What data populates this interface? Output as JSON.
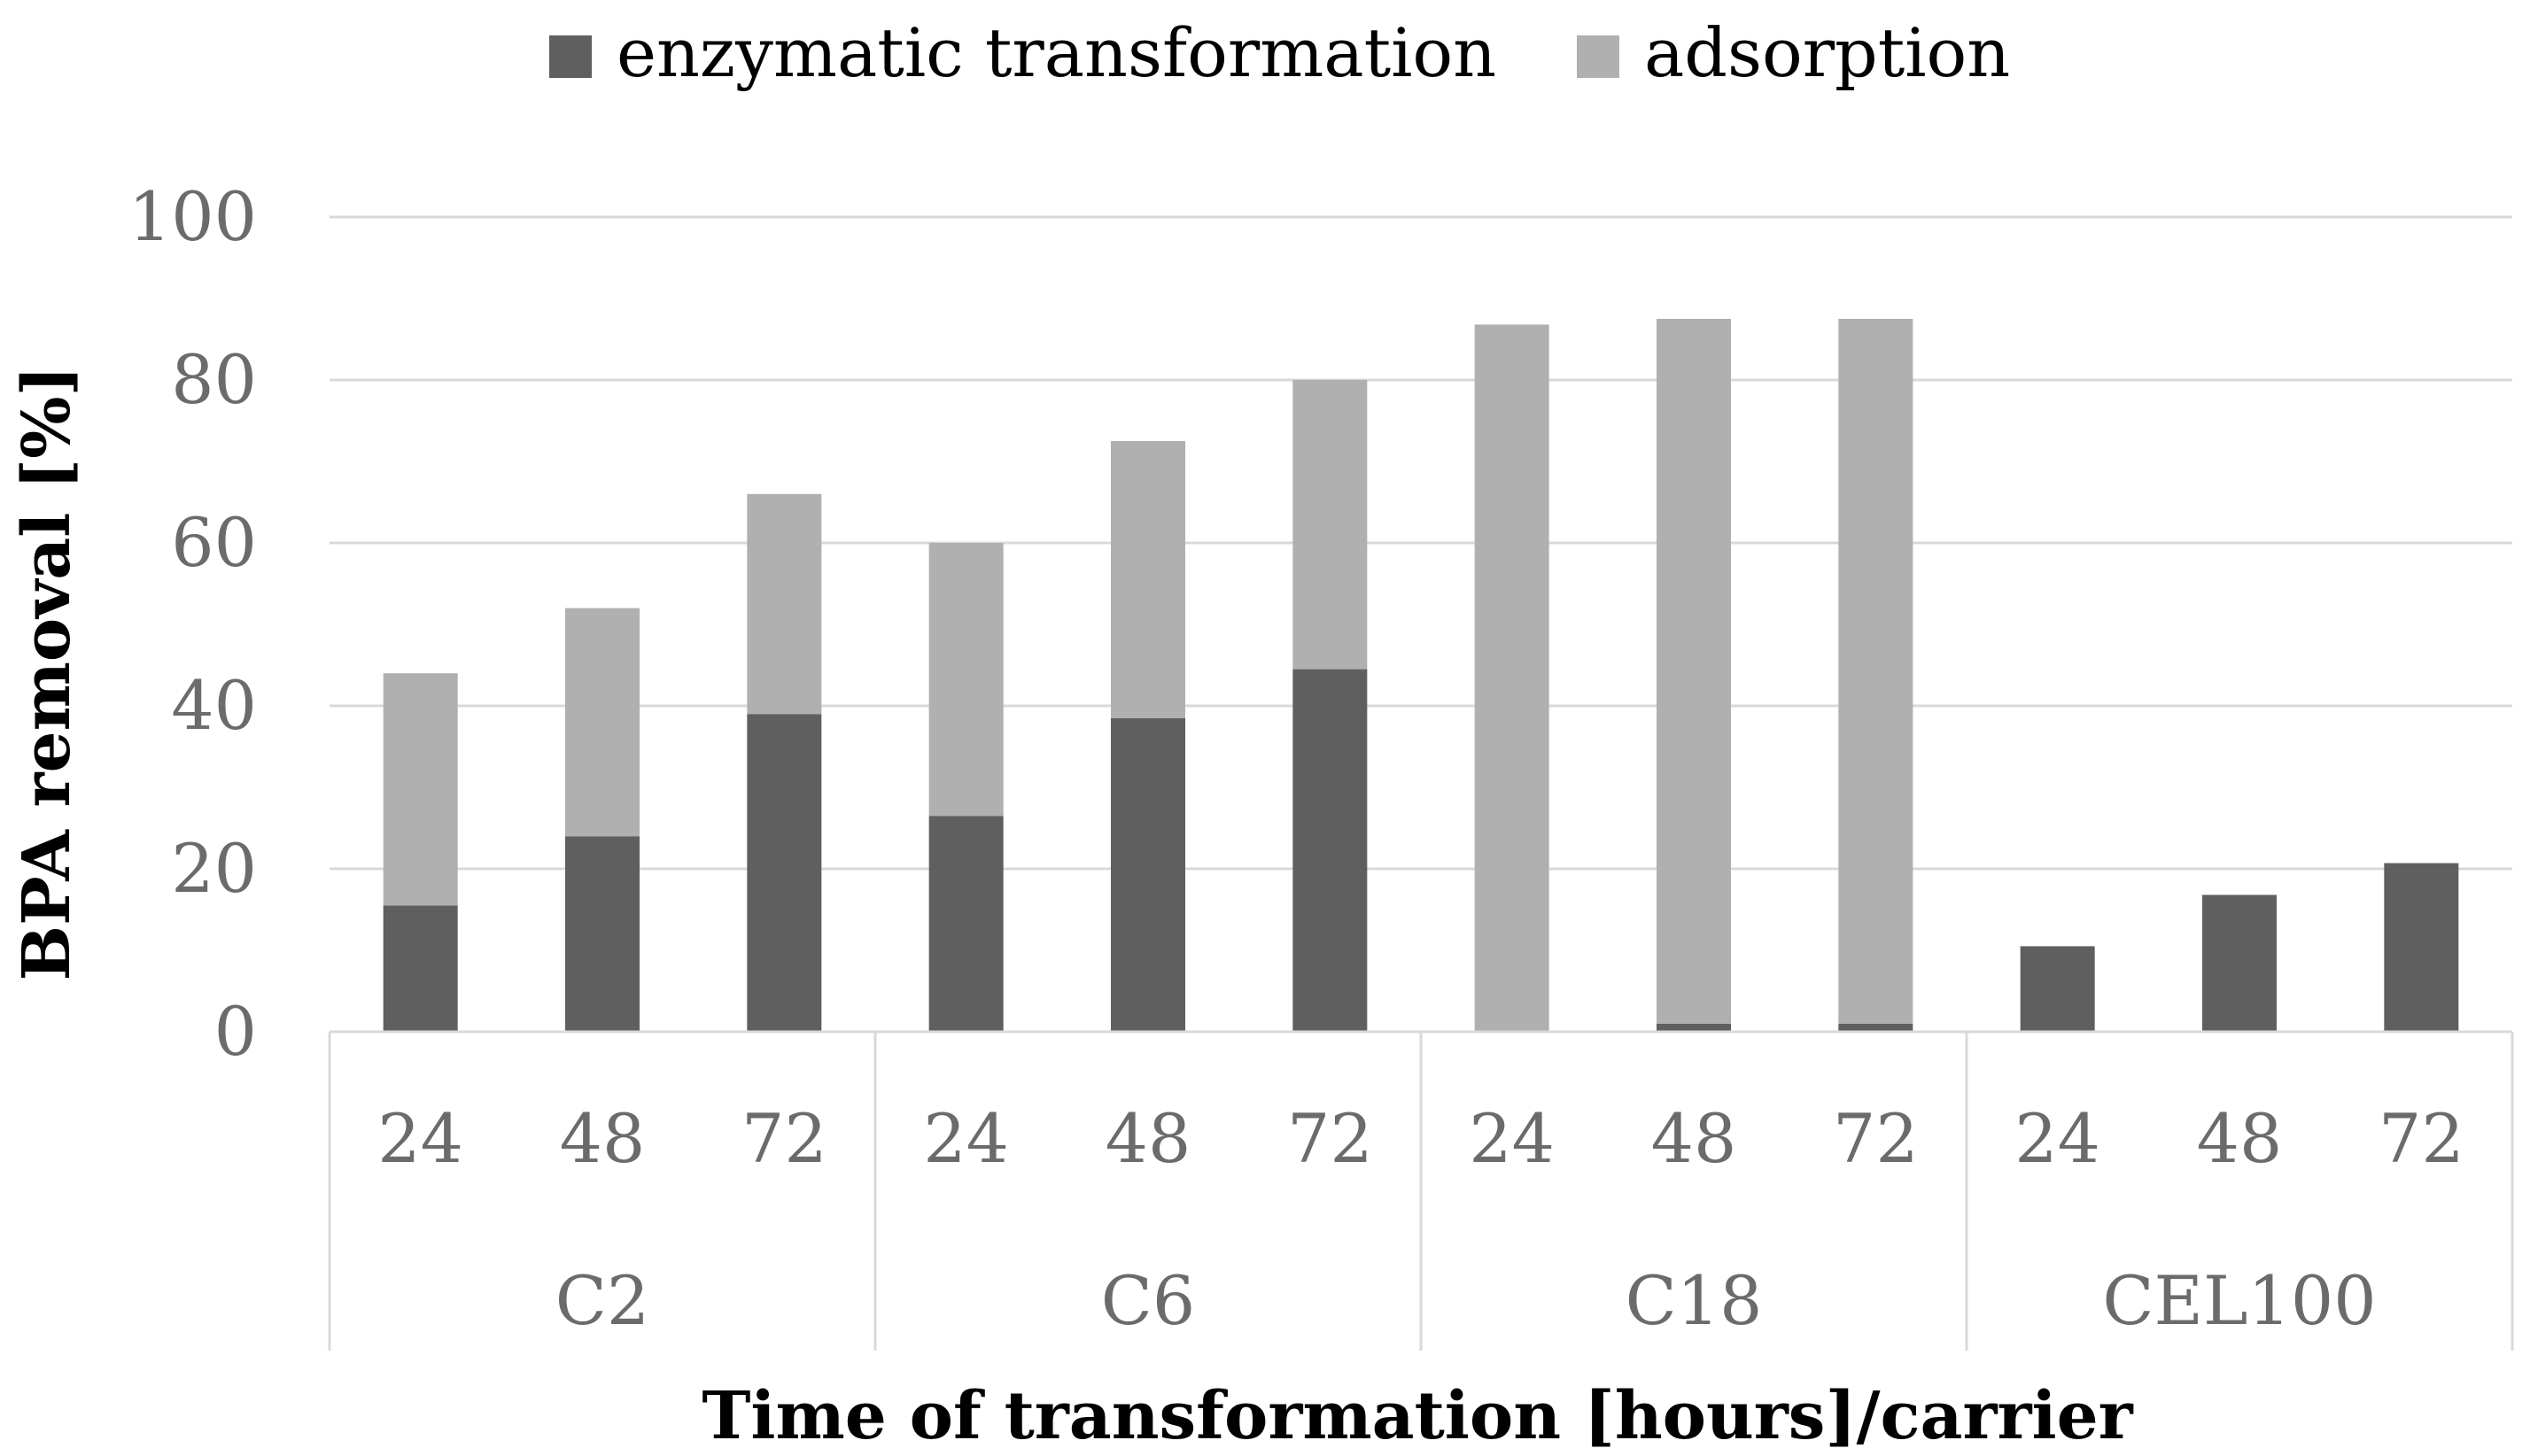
{
  "chart_data": {
    "type": "bar",
    "stacked": true,
    "title": "",
    "xlabel": "Time of transformation [hours]/carrier",
    "ylabel": "BPA removal [%]",
    "ylim": [
      0,
      100
    ],
    "yticks": [
      "0",
      "20",
      "40",
      "60",
      "80",
      "100"
    ],
    "grid": true,
    "legend_position": "top",
    "groups": [
      {
        "label": "C2",
        "categories": [
          "24",
          "48",
          "72"
        ]
      },
      {
        "label": "C6",
        "categories": [
          "24",
          "48",
          "72"
        ]
      },
      {
        "label": "C18",
        "categories": [
          "24",
          "48",
          "72"
        ]
      },
      {
        "label": "CEL100",
        "categories": [
          "24",
          "48",
          "72"
        ]
      }
    ],
    "series": [
      {
        "name": "enzymatic transformation",
        "color": "#5f5f5f",
        "values": [
          15.5,
          24,
          39,
          26.5,
          38.5,
          44.5,
          0,
          1,
          1,
          10.5,
          16.8,
          20.7
        ]
      },
      {
        "name": "adsorption",
        "color": "#b0b0b0",
        "values": [
          28.5,
          28,
          27,
          33.5,
          34,
          35.5,
          86.8,
          86.5,
          86.5,
          0,
          0,
          0
        ]
      }
    ]
  }
}
